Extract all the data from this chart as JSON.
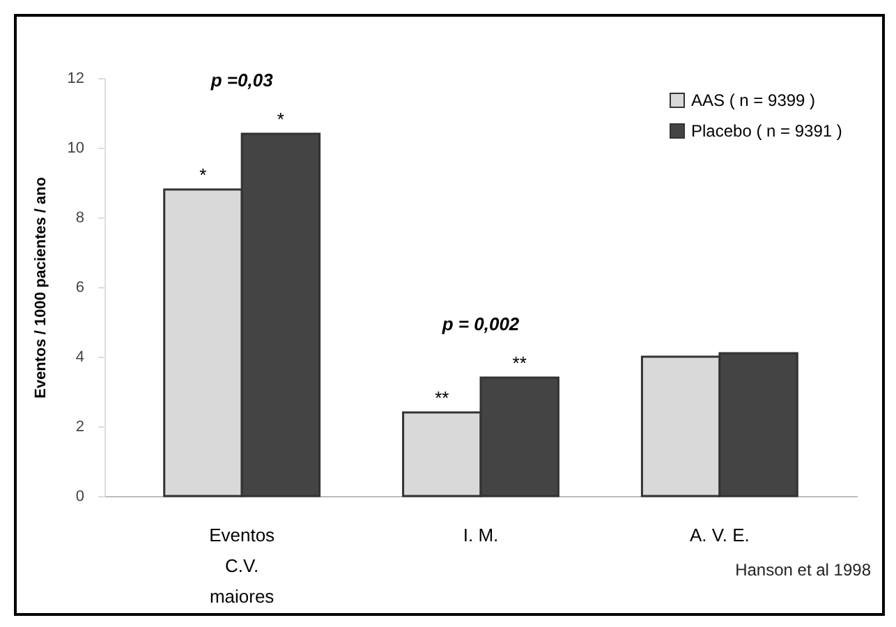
{
  "chart_data": {
    "type": "bar",
    "ylabel": "Eventos / 1000 pacientes / ano",
    "categories": [
      "Eventos\nC.V.\nmaiores",
      "I. M.",
      "A. V. E."
    ],
    "series": [
      {
        "name": "AAS ( n = 9399 )",
        "color": "#d9d9d9",
        "values": [
          8.8,
          2.4,
          4.0
        ],
        "value_labels": [
          "*",
          "**",
          null
        ]
      },
      {
        "name": "Placebo ( n = 9391 )",
        "color": "#444444",
        "values": [
          10.4,
          3.4,
          4.1
        ],
        "value_labels": [
          "*",
          "**",
          null
        ]
      }
    ],
    "ylim": [
      0,
      12
    ],
    "yticks": [
      0,
      2,
      4,
      6,
      8,
      10,
      12
    ],
    "grid": false,
    "legend": "top right",
    "annotations": [
      "p =0,03",
      "p = 0,002",
      "Hanson et al 1998"
    ]
  }
}
